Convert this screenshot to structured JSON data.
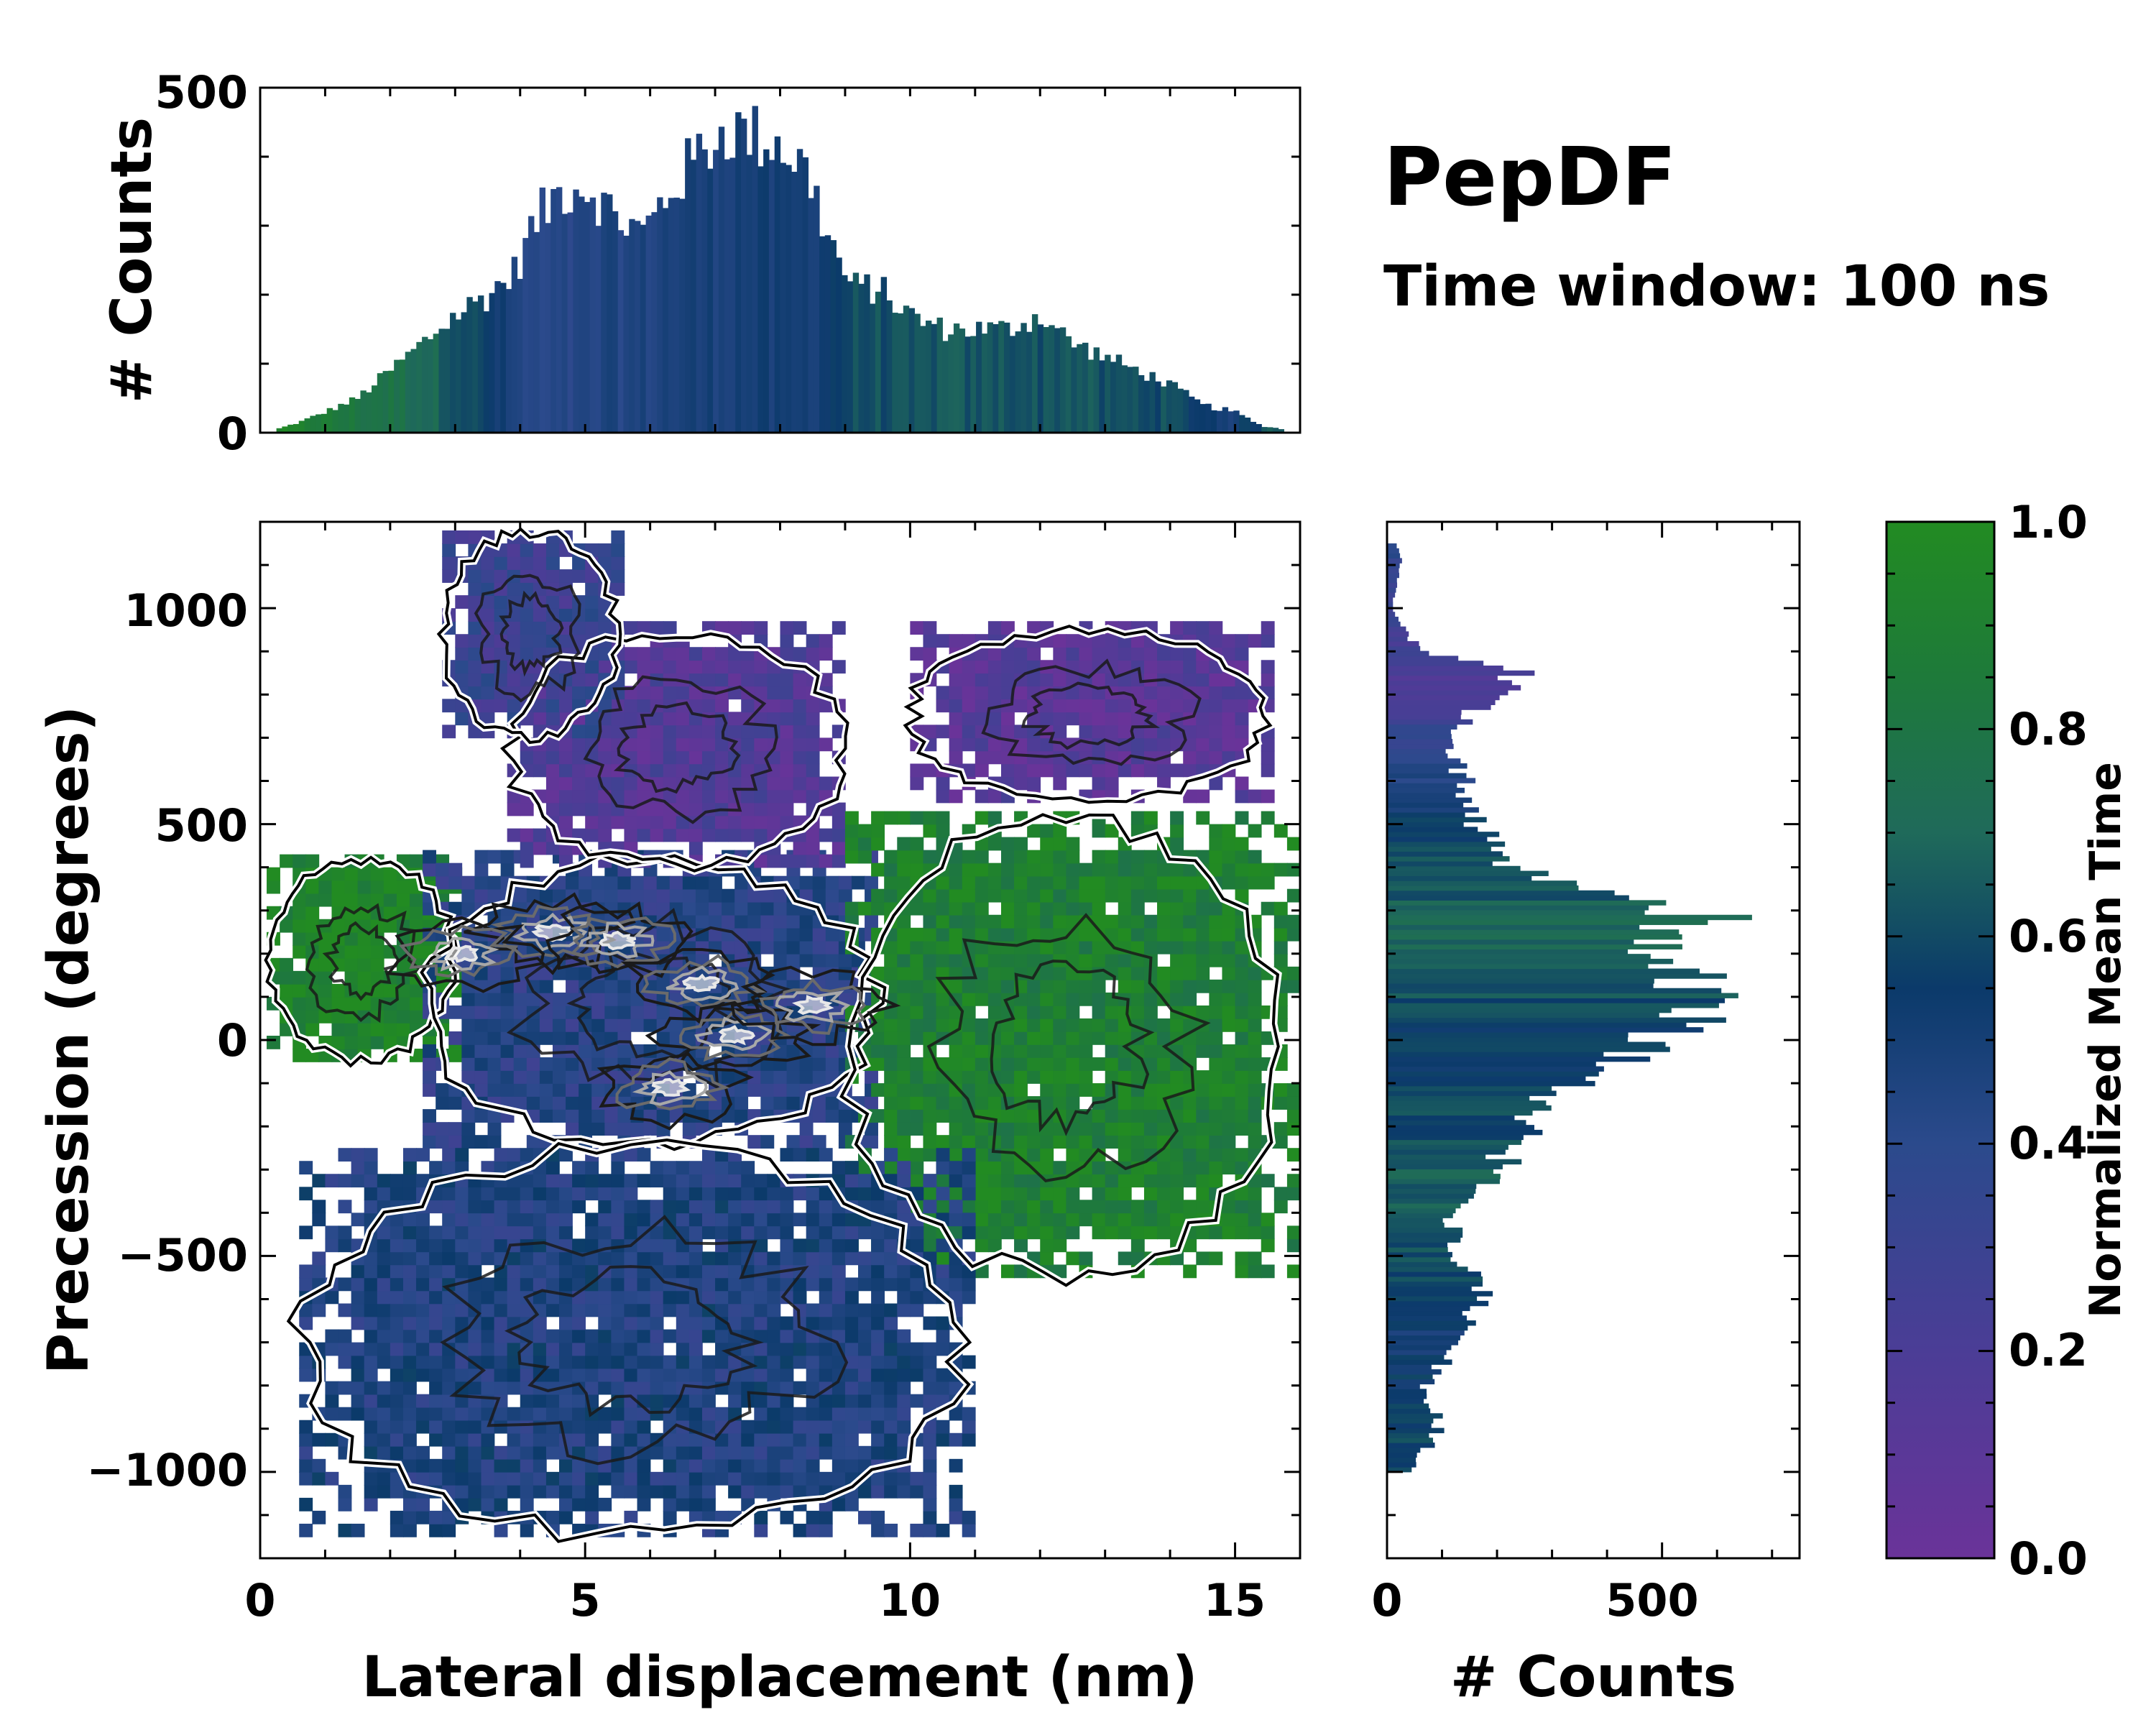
{
  "figure": {
    "title": "PepDF",
    "subtitle": "Time window: 100 ns"
  },
  "colors": {
    "purple": "#6a3399",
    "blue": "#2b4a8c",
    "navy": "#0b3a6a",
    "teal": "#1f6a5a",
    "green": "#228b22",
    "contour_dark": "#1a1a1a",
    "contour_mid": "#6b6b6b",
    "contour_light": "#e8e8e8"
  },
  "chart_data": [
    {
      "id": "top-histogram",
      "type": "bar",
      "title": "",
      "xlabel": "",
      "ylabel": "# Counts",
      "xlim": [
        0,
        16
      ],
      "ylim": [
        0,
        500
      ],
      "yticks": [
        0,
        500
      ],
      "bin_edges_start": 0.25,
      "bin_edges_end": 15.75,
      "profile_x": [
        0.25,
        0.6,
        1.0,
        1.5,
        2.0,
        2.5,
        3.0,
        3.5,
        3.9,
        4.2,
        4.6,
        5.0,
        5.5,
        5.9,
        6.3,
        6.8,
        7.2,
        7.6,
        8.0,
        8.4,
        8.8,
        9.1,
        9.5,
        10.0,
        10.5,
        11.0,
        11.5,
        12.0,
        12.5,
        13.0,
        13.5,
        14.0,
        14.5,
        15.0,
        15.4,
        15.75
      ],
      "profile_counts": [
        5,
        15,
        30,
        50,
        90,
        130,
        170,
        200,
        230,
        300,
        350,
        360,
        310,
        290,
        350,
        410,
        440,
        430,
        420,
        380,
        270,
        210,
        210,
        170,
        150,
        150,
        150,
        170,
        130,
        110,
        90,
        70,
        40,
        30,
        10,
        5
      ],
      "profile_time": [
        0.95,
        0.9,
        0.85,
        0.8,
        0.78,
        0.72,
        0.65,
        0.55,
        0.45,
        0.4,
        0.4,
        0.42,
        0.45,
        0.45,
        0.48,
        0.48,
        0.5,
        0.5,
        0.48,
        0.5,
        0.55,
        0.6,
        0.62,
        0.6,
        0.65,
        0.62,
        0.64,
        0.62,
        0.66,
        0.6,
        0.62,
        0.6,
        0.55,
        0.5,
        0.6,
        0.7
      ]
    },
    {
      "id": "right-histogram",
      "type": "bar",
      "orientation": "horizontal",
      "title": "",
      "xlabel": "# Counts",
      "ylabel": "",
      "xlim": [
        0,
        750
      ],
      "xticks": [
        0,
        500
      ],
      "ylim": [
        -1200,
        1200
      ],
      "bin_edges_start": -1000,
      "bin_edges_end": 1150,
      "profile_y": [
        -1000,
        -900,
        -800,
        -700,
        -600,
        -500,
        -400,
        -300,
        -200,
        -100,
        0,
        80,
        150,
        220,
        280,
        330,
        400,
        500,
        600,
        700,
        800,
        850,
        900,
        1000,
        1100,
        1150
      ],
      "profile_counts": [
        40,
        100,
        70,
        130,
        170,
        130,
        110,
        200,
        260,
        330,
        500,
        570,
        540,
        460,
        600,
        380,
        220,
        160,
        140,
        100,
        200,
        230,
        60,
        10,
        25,
        20
      ],
      "profile_time": [
        0.6,
        0.58,
        0.55,
        0.5,
        0.55,
        0.62,
        0.65,
        0.68,
        0.6,
        0.58,
        0.55,
        0.6,
        0.65,
        0.7,
        0.68,
        0.65,
        0.62,
        0.55,
        0.45,
        0.35,
        0.2,
        0.2,
        0.25,
        0.3,
        0.35,
        0.4
      ]
    },
    {
      "id": "heatmap",
      "type": "heatmap",
      "title": "",
      "xlabel": "Lateral displacement (nm)",
      "ylabel": "Precession (degrees)",
      "xlim": [
        0,
        16
      ],
      "ylim": [
        -1200,
        1200
      ],
      "xticks": [
        0,
        5,
        10,
        15
      ],
      "yticks": [
        -1000,
        -500,
        0,
        500,
        1000
      ],
      "ytick_labels": [
        "−1000",
        "−500",
        "0",
        "500",
        "1000"
      ],
      "color_label": "Normalized Mean Time",
      "regions": [
        {
          "name": "left-green-arm",
          "x": [
            0.1,
            3.0
          ],
          "y": [
            -50,
            420
          ],
          "time": 0.95
        },
        {
          "name": "center-mixed",
          "x": [
            2.5,
            9.5
          ],
          "y": [
            -250,
            420
          ],
          "time": 0.4
        },
        {
          "name": "upper-purple",
          "x": [
            3.8,
            9.0
          ],
          "y": [
            400,
            950
          ],
          "time": 0.15
        },
        {
          "name": "top-blue-plume",
          "x": [
            2.8,
            5.5
          ],
          "y": [
            700,
            1180
          ],
          "time": 0.3
        },
        {
          "name": "upper-right-purple",
          "x": [
            10.0,
            15.5
          ],
          "y": [
            550,
            950
          ],
          "time": 0.12
        },
        {
          "name": "right-green",
          "x": [
            9.0,
            15.8
          ],
          "y": [
            -550,
            520
          ],
          "time": 0.9
        },
        {
          "name": "lower-blue",
          "x": [
            0.6,
            10.8
          ],
          "y": [
            -1150,
            -250
          ],
          "time": 0.45
        }
      ],
      "density_peaks": [
        {
          "x": 4.5,
          "y": 250
        },
        {
          "x": 5.5,
          "y": 230
        },
        {
          "x": 6.8,
          "y": 130
        },
        {
          "x": 7.3,
          "y": 10
        },
        {
          "x": 8.5,
          "y": 80
        },
        {
          "x": 6.3,
          "y": -110
        },
        {
          "x": 3.1,
          "y": 200
        }
      ]
    },
    {
      "id": "colorbar",
      "type": "colorbar",
      "label": "Normalized Mean Time",
      "range": [
        0.0,
        1.0
      ],
      "ticks": [
        "0.0",
        "0.2",
        "0.4",
        "0.6",
        "0.8",
        "1.0"
      ]
    }
  ]
}
